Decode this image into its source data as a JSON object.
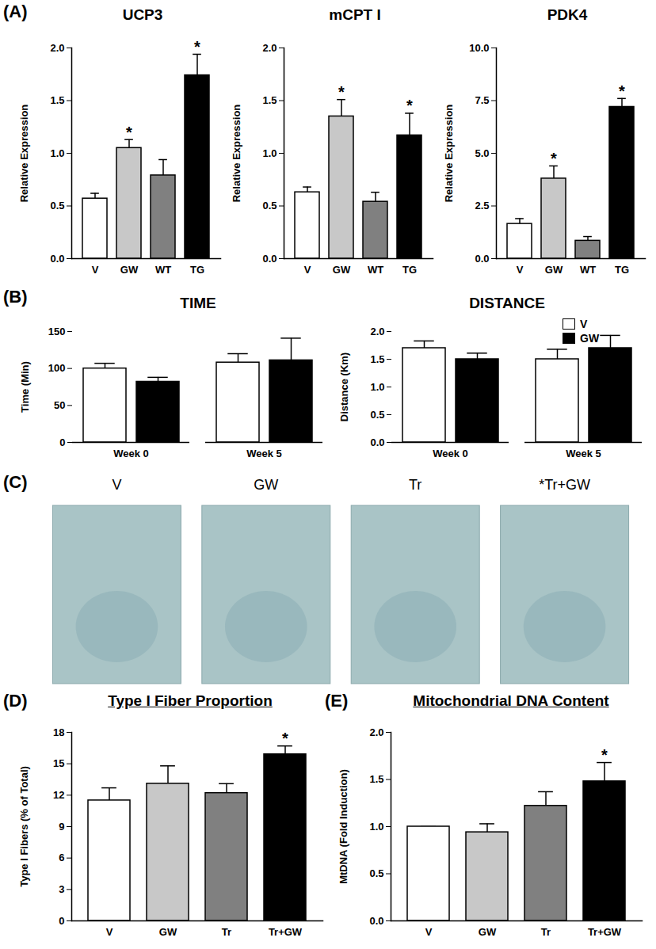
{
  "chart_data": [
    {
      "type": "bar",
      "annotations": [
        "(A)"
      ],
      "title": "UCP3",
      "ylabel": "Relative Expression",
      "categories": [
        "V",
        "GW",
        "WT",
        "TG"
      ],
      "values": [
        0.57,
        1.05,
        0.79,
        1.74
      ],
      "errors": [
        0.05,
        0.08,
        0.15,
        0.2
      ],
      "colors": [
        "#ffffff",
        "#c8c8c8",
        "#808080",
        "#000000"
      ],
      "significant": [
        false,
        true,
        false,
        true
      ],
      "significance_mark": "*",
      "ylim": [
        0,
        2
      ],
      "yticks": [
        {
          "value": 0,
          "label": "0.0"
        },
        {
          "value": 0.5,
          "label": "0.5"
        },
        {
          "value": 1,
          "label": "1.0"
        },
        {
          "value": 1.5,
          "label": "1.5"
        },
        {
          "value": 2,
          "label": "2.0"
        }
      ]
    },
    {
      "type": "bar",
      "title": "mCPT I",
      "ylabel": "Relative Expression",
      "categories": [
        "V",
        "GW",
        "WT",
        "TG"
      ],
      "values": [
        0.63,
        1.35,
        0.54,
        1.17
      ],
      "errors": [
        0.05,
        0.16,
        0.09,
        0.21
      ],
      "colors": [
        "#ffffff",
        "#c8c8c8",
        "#808080",
        "#000000"
      ],
      "significant": [
        false,
        true,
        false,
        true
      ],
      "significance_mark": "*",
      "ylim": [
        0,
        2
      ],
      "yticks": [
        {
          "value": 0,
          "label": "0.0"
        },
        {
          "value": 0.5,
          "label": "0.5"
        },
        {
          "value": 1,
          "label": "1.0"
        },
        {
          "value": 1.5,
          "label": "1.5"
        },
        {
          "value": 2,
          "label": "2.0"
        }
      ]
    },
    {
      "type": "bar",
      "title": "PDK4",
      "ylabel": "Relative Expression",
      "categories": [
        "V",
        "GW",
        "WT",
        "TG"
      ],
      "values": [
        1.65,
        3.8,
        0.85,
        7.2
      ],
      "errors": [
        0.25,
        0.6,
        0.2,
        0.4
      ],
      "colors": [
        "#ffffff",
        "#c8c8c8",
        "#808080",
        "#000000"
      ],
      "significant": [
        false,
        true,
        false,
        true
      ],
      "significance_mark": "*",
      "ylim": [
        0,
        10
      ],
      "yticks": [
        {
          "value": 0,
          "label": "0.0"
        },
        {
          "value": 2.5,
          "label": "2.5"
        },
        {
          "value": 5,
          "label": "5.0"
        },
        {
          "value": 7.5,
          "label": "7.5"
        },
        {
          "value": 10,
          "label": "10.0"
        }
      ]
    },
    {
      "type": "grouped_bar",
      "annotations": [
        "(B)"
      ],
      "title": "TIME",
      "ylabel": "Time (Min)",
      "categories": [
        "Week 0",
        "Week 5"
      ],
      "series": [
        {
          "name": "V",
          "color": "#ffffff",
          "values": [
            100,
            108
          ],
          "errors": [
            7,
            12
          ]
        },
        {
          "name": "GW",
          "color": "#000000",
          "values": [
            82,
            111
          ],
          "errors": [
            6,
            30
          ]
        }
      ],
      "ylim": [
        0,
        150
      ],
      "yticks": [
        0,
        50,
        100,
        150
      ]
    },
    {
      "type": "grouped_bar",
      "title": "DISTANCE",
      "ylabel": "Distance (Km)",
      "legend": "top-right",
      "categories": [
        "Week 0",
        "Week 5"
      ],
      "series": [
        {
          "name": "V",
          "color": "#ffffff",
          "values": [
            1.7,
            1.5
          ],
          "errors": [
            0.13,
            0.18
          ]
        },
        {
          "name": "GW",
          "color": "#000000",
          "values": [
            1.5,
            1.7
          ],
          "errors": [
            0.11,
            0.23
          ]
        }
      ],
      "ylim": [
        0,
        2
      ],
      "yticks": [
        {
          "value": 0,
          "label": "0.0"
        },
        {
          "value": 0.5,
          "label": "0.5"
        },
        {
          "value": 1,
          "label": "1.0"
        },
        {
          "value": 1.5,
          "label": "1.5"
        },
        {
          "value": 2,
          "label": "2.0"
        }
      ]
    },
    {
      "type": "image_panel",
      "annotations": [
        "(C)"
      ],
      "labels": [
        "V",
        "GW",
        "Tr",
        "*Tr+GW"
      ]
    },
    {
      "type": "bar",
      "annotations": [
        "(D)"
      ],
      "title": "Type I Fiber Proportion",
      "ylabel": "Type I Fibers (% of Total)",
      "categories": [
        "V",
        "GW",
        "Tr",
        "Tr+GW"
      ],
      "values": [
        11.5,
        13.1,
        12.2,
        15.9
      ],
      "errors": [
        1.2,
        1.7,
        0.9,
        0.8
      ],
      "colors": [
        "#ffffff",
        "#c8c8c8",
        "#808080",
        "#000000"
      ],
      "significant": [
        false,
        false,
        false,
        true
      ],
      "significance_mark": "*",
      "ylim": [
        0,
        18
      ],
      "yticks": [
        0,
        3,
        6,
        9,
        12,
        15,
        18
      ]
    },
    {
      "type": "bar",
      "annotations": [
        "(E)"
      ],
      "title": "Mitochondrial DNA Content",
      "ylabel": "MtDNA (Fold Induction)",
      "categories": [
        "V",
        "GW",
        "Tr",
        "Tr+GW"
      ],
      "values": [
        1.0,
        0.94,
        1.22,
        1.48
      ],
      "errors": [
        0,
        0.09,
        0.15,
        0.2
      ],
      "colors": [
        "#ffffff",
        "#c8c8c8",
        "#808080",
        "#000000"
      ],
      "significant": [
        false,
        false,
        false,
        true
      ],
      "significance_mark": "*",
      "ylim": [
        0,
        2
      ],
      "yticks": [
        {
          "value": 0,
          "label": "0.0"
        },
        {
          "value": 0.5,
          "label": "0.5"
        },
        {
          "value": 1,
          "label": "1.0"
        },
        {
          "value": 1.5,
          "label": "1.5"
        },
        {
          "value": 2,
          "label": "2.0"
        }
      ]
    }
  ]
}
